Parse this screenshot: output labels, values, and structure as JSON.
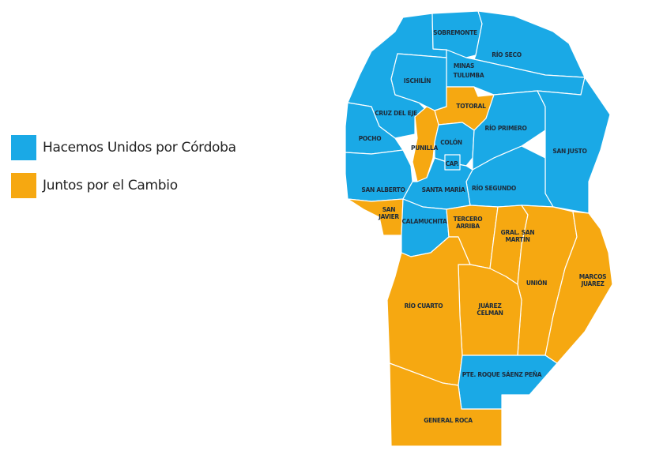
{
  "legend": [
    {
      "label": "Hacemos Unidos por Córdoba",
      "color": "#1aa9e6"
    },
    {
      "label": "Juntos por el Cambio",
      "color": "#f6a811"
    }
  ],
  "departments": {
    "sobremonte": {
      "name": "SOBREMONTE",
      "winner": "Hacemos Unidos por Córdoba"
    },
    "rio_seco": {
      "name": "RÍO SECO",
      "winner": "Hacemos Unidos por Córdoba"
    },
    "minas": {
      "name": "MINAS",
      "winner": "Hacemos Unidos por Córdoba"
    },
    "tulumba": {
      "name": "TULUMBA",
      "winner": "Hacemos Unidos por Córdoba"
    },
    "ischilin": {
      "name": "ISCHILÍN",
      "winner": "Hacemos Unidos por Córdoba"
    },
    "totoral": {
      "name": "TOTORAL",
      "winner": "Juntos por el Cambio"
    },
    "cruz_del_eje": {
      "name": "CRUZ DEL EJE",
      "winner": "Hacemos Unidos por Córdoba"
    },
    "pocho": {
      "name": "POCHO",
      "winner": "Hacemos Unidos por Córdoba"
    },
    "punilla": {
      "name": "PUNILLA",
      "winner": "Juntos por el Cambio"
    },
    "colon": {
      "name": "COLÓN",
      "winner": "Hacemos Unidos por Córdoba"
    },
    "capital": {
      "name": "CAP.",
      "winner": "Hacemos Unidos por Córdoba"
    },
    "rio_primero": {
      "name": "RÍO PRIMERO",
      "winner": "Hacemos Unidos por Córdoba"
    },
    "san_justo": {
      "name": "SAN JUSTO",
      "winner": "Hacemos Unidos por Córdoba"
    },
    "san_alberto": {
      "name": "SAN ALBERTO",
      "winner": "Hacemos Unidos por Córdoba"
    },
    "santa_maria": {
      "name": "SANTA MARÍA",
      "winner": "Hacemos Unidos por Córdoba"
    },
    "rio_segundo": {
      "name": "RÍO SEGUNDO",
      "winner": "Hacemos Unidos por Córdoba"
    },
    "san_javier": {
      "name1": "SAN",
      "name2": "JAVIER",
      "winner": "Juntos por el Cambio"
    },
    "calamuchita": {
      "name": "CALAMUCHITA",
      "winner": "Hacemos Unidos por Córdoba"
    },
    "tercero_arriba": {
      "name1": "TERCERO",
      "name2": "ARRIBA",
      "winner": "Juntos por el Cambio"
    },
    "gral_san_martin": {
      "name1": "GRAL. SAN",
      "name2": "MARTÍN",
      "winner": "Juntos por el Cambio"
    },
    "union": {
      "name": "UNIÓN",
      "winner": "Juntos por el Cambio"
    },
    "marcos_juarez": {
      "name1": "MARCOS",
      "name2": "JUÁREZ",
      "winner": "Juntos por el Cambio"
    },
    "rio_cuarto": {
      "name": "RÍO CUARTO",
      "winner": "Juntos por el Cambio"
    },
    "juarez_celman": {
      "name1": "JUÁREZ",
      "name2": "CELMAN",
      "winner": "Juntos por el Cambio"
    },
    "pte_roque_saenz_pena": {
      "name": "PTE. ROQUE SÁENZ PEÑA",
      "winner": "Hacemos Unidos por Córdoba"
    },
    "general_roca": {
      "name": "GENERAL ROCA",
      "winner": "Juntos por el Cambio"
    }
  }
}
